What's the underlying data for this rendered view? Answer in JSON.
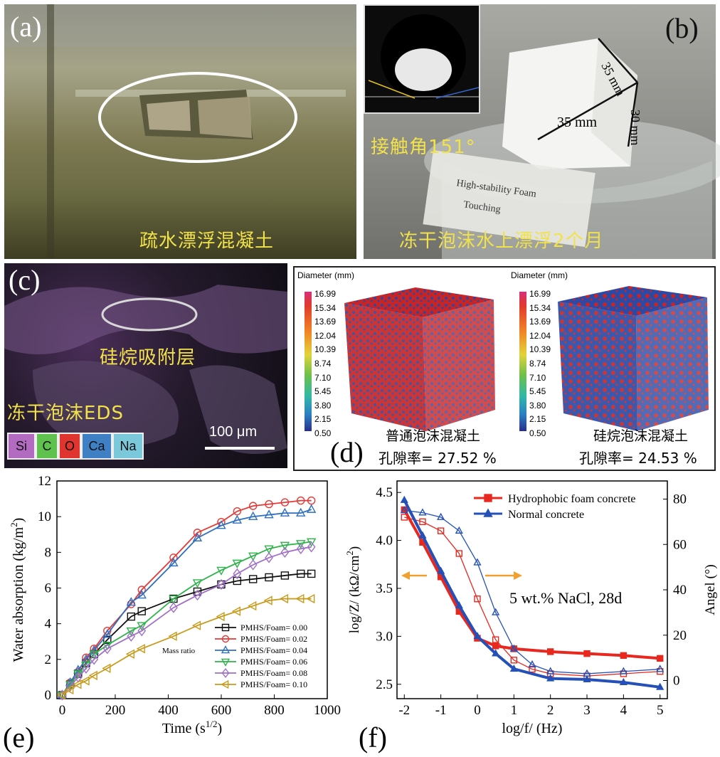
{
  "panel_a": {
    "label": "(a)",
    "caption": "疏水漂浮混凝土"
  },
  "panel_b": {
    "label": "(b)",
    "contact_angle_text": "接触角151°",
    "caption": "冻干泡沫水上漂浮2个月",
    "dim_depth": "35 mm",
    "dim_width": "35 mm",
    "dim_height": "30 mm",
    "beaker_label_line1": "High-stability Foam",
    "beaker_label_line2": "Touching"
  },
  "panel_c": {
    "label": "(c)",
    "annotation": "硅烷吸附层",
    "eds_title": "冻干泡沫EDS",
    "scale_bar": "100 μm",
    "elements": [
      {
        "symbol": "Si",
        "color": "#b36bc1"
      },
      {
        "symbol": "C",
        "color": "#5fc24f"
      },
      {
        "symbol": "O",
        "color": "#e0342f"
      },
      {
        "symbol": "Ca",
        "color": "#3f7fc4"
      },
      {
        "symbol": "Na",
        "color": "#7ac8d9"
      }
    ]
  },
  "panel_d": {
    "label": "(d)",
    "colorbar_title": "Diameter (mm)",
    "colorbar_ticks": [
      "16.99",
      "15.34",
      "13.69",
      "12.04",
      "10.39",
      "8.74",
      "7.10",
      "5.45",
      "3.80",
      "2.15",
      "0.50"
    ],
    "left_name": "普通泡沫混凝土",
    "left_porosity": "孔隙率= 27.52 %",
    "right_name": "硅烷泡沫混凝土",
    "right_porosity": "孔隙率= 24.53 %"
  },
  "panel_e": {
    "label": "(e)",
    "legend_title": "Mass ratio",
    "chart_data": {
      "type": "line",
      "xlabel": "Time (s",
      "xlabel_sup": "1/2",
      "xlabel_end": ")",
      "ylabel": "Water absorption (kg/m",
      "ylabel_sup": "2",
      "ylabel_end": ")",
      "xlim": [
        -20,
        1000
      ],
      "ylim": [
        -0.2,
        12
      ],
      "xticks": [
        0,
        200,
        400,
        600,
        800,
        1000
      ],
      "yticks": [
        0,
        2,
        4,
        6,
        8,
        10,
        12
      ],
      "series": [
        {
          "name": "PMHS/Foam= 0.00",
          "color": "#111111",
          "marker": "square",
          "x": [
            0,
            30,
            60,
            90,
            120,
            170,
            260,
            300,
            420,
            510,
            600,
            660,
            720,
            780,
            840,
            900,
            940
          ],
          "y": [
            0,
            0.6,
            1.2,
            1.8,
            2.3,
            3.1,
            4.4,
            4.7,
            5.4,
            5.8,
            6.2,
            6.4,
            6.5,
            6.6,
            6.7,
            6.8,
            6.8
          ]
        },
        {
          "name": "PMHS/Foam= 0.02",
          "color": "#e53935",
          "marker": "circle",
          "x": [
            0,
            30,
            60,
            90,
            120,
            170,
            260,
            300,
            420,
            510,
            600,
            660,
            720,
            780,
            840,
            900,
            940
          ],
          "y": [
            0,
            0.7,
            1.3,
            2.1,
            2.6,
            3.6,
            5.1,
            5.9,
            7.7,
            9.1,
            9.7,
            10.3,
            10.6,
            10.7,
            10.8,
            10.9,
            10.9
          ]
        },
        {
          "name": "PMHS/Foam= 0.04",
          "color": "#2f6fc0",
          "marker": "triangle-up",
          "x": [
            0,
            30,
            60,
            90,
            120,
            170,
            260,
            300,
            420,
            510,
            600,
            660,
            720,
            780,
            840,
            900,
            940
          ],
          "y": [
            0,
            0.7,
            1.4,
            2.0,
            2.5,
            3.4,
            5.2,
            5.6,
            7.4,
            8.8,
            9.5,
            9.8,
            10.0,
            10.1,
            10.2,
            10.2,
            10.4
          ]
        },
        {
          "name": "PMHS/Foam= 0.06",
          "color": "#2db34a",
          "marker": "triangle-down",
          "x": [
            0,
            30,
            60,
            90,
            120,
            170,
            260,
            300,
            420,
            510,
            600,
            660,
            720,
            780,
            840,
            900,
            940
          ],
          "y": [
            0,
            0.6,
            1.2,
            1.7,
            2.3,
            2.8,
            3.6,
            3.9,
            5.4,
            6.3,
            7.0,
            7.4,
            7.8,
            8.2,
            8.4,
            8.5,
            8.6
          ]
        },
        {
          "name": "PMHS/Foam= 0.08",
          "color": "#a070c8",
          "marker": "diamond",
          "x": [
            0,
            30,
            60,
            90,
            120,
            170,
            260,
            300,
            420,
            510,
            600,
            660,
            720,
            780,
            840,
            900,
            940
          ],
          "y": [
            0,
            0.5,
            1.0,
            1.5,
            2.0,
            2.6,
            3.3,
            3.6,
            4.9,
            5.6,
            6.2,
            6.8,
            7.3,
            7.7,
            8.0,
            8.2,
            8.3
          ]
        },
        {
          "name": "PMHS/Foam= 0.10",
          "color": "#c89b1c",
          "marker": "triangle-left",
          "x": [
            0,
            30,
            60,
            90,
            120,
            170,
            260,
            300,
            420,
            510,
            600,
            660,
            720,
            780,
            840,
            900,
            940
          ],
          "y": [
            0,
            0.3,
            0.6,
            0.8,
            1.1,
            1.5,
            2.3,
            2.6,
            3.3,
            3.9,
            4.4,
            4.7,
            5.0,
            5.3,
            5.4,
            5.4,
            5.4
          ]
        }
      ]
    }
  },
  "panel_f": {
    "label": "(f)",
    "annotation": "5 wt.% NaCl, 28d",
    "chart_data": {
      "type": "line",
      "xlabel": "log/f/ (Hz)",
      "ylabel_left": "log/Z/ (kΩ/cm",
      "ylabel_left_sup": "2",
      "ylabel_left_end": ")",
      "ylabel_right": "Angel (°)",
      "xlim": [
        -2.2,
        5.2
      ],
      "ylim_left": [
        2.35,
        4.62
      ],
      "ylim_right": [
        -8,
        88
      ],
      "xticks": [
        -2,
        -1,
        0,
        1,
        2,
        3,
        4,
        5
      ],
      "yticks_left": [
        2.5,
        3.0,
        3.5,
        4.0,
        4.5
      ],
      "yticks_right": [
        0,
        20,
        40,
        60,
        80
      ],
      "series": [
        {
          "name": "Hydrophobic foam concrete",
          "color": "#e8281f",
          "marker": "square"
        },
        {
          "name": "Normal concrete",
          "color": "#2450b8",
          "marker": "triangle-up"
        }
      ],
      "modulus": {
        "hydrophobic": {
          "x": [
            -2,
            -1.5,
            -1,
            -0.5,
            0,
            0.5,
            1,
            2,
            3,
            4,
            5
          ],
          "y": [
            4.32,
            3.98,
            3.62,
            3.26,
            2.98,
            2.9,
            2.87,
            2.84,
            2.82,
            2.8,
            2.77
          ]
        },
        "normal": {
          "x": [
            -2,
            -1.5,
            -1,
            -0.5,
            0,
            0.5,
            1,
            2,
            3,
            4,
            5
          ],
          "y": [
            4.42,
            4.05,
            3.68,
            3.32,
            3.0,
            2.82,
            2.66,
            2.56,
            2.55,
            2.52,
            2.47
          ]
        }
      },
      "phase": {
        "hydrophobic": {
          "x": [
            -2,
            -1.5,
            -1,
            -0.5,
            0,
            0.5,
            1,
            1.5,
            2,
            3,
            4,
            5
          ],
          "y": [
            72,
            70,
            66,
            56,
            36,
            18,
            9,
            5,
            3,
            2,
            3,
            4
          ]
        },
        "normal": {
          "x": [
            -2,
            -1.5,
            -1,
            -0.5,
            0,
            0.5,
            1,
            1.5,
            2,
            3,
            4,
            5
          ],
          "y": [
            75,
            74,
            72,
            66,
            52,
            30,
            14,
            7,
            4,
            3,
            4,
            5
          ]
        }
      }
    }
  }
}
